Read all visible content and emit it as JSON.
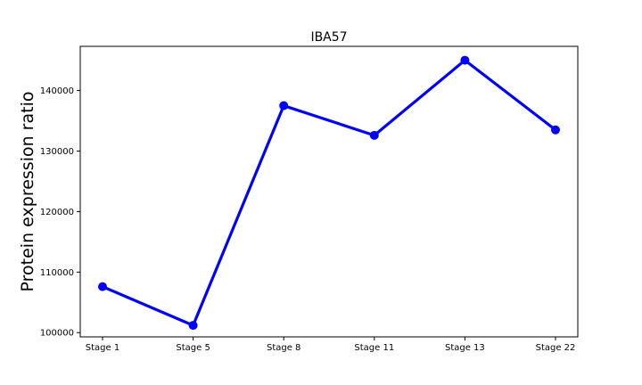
{
  "chart_data": {
    "type": "line",
    "title": "IBA57",
    "xlabel": "",
    "ylabel": "Protein expression ratio",
    "categories": [
      "Stage 1",
      "Stage 5",
      "Stage 8",
      "Stage 11",
      "Stage 13",
      "Stage 22"
    ],
    "series": [
      {
        "values": [
          107600,
          101200,
          137500,
          132600,
          145000,
          133500
        ]
      }
    ],
    "ylim": [
      99300,
      147300
    ],
    "yticks": [
      100000,
      110000,
      120000,
      130000,
      140000
    ],
    "ytick_labels": [
      "100000",
      "110000",
      "120000",
      "130000",
      "140000"
    ],
    "grid": false,
    "line_color": "#0000ff",
    "marker": "circle"
  }
}
